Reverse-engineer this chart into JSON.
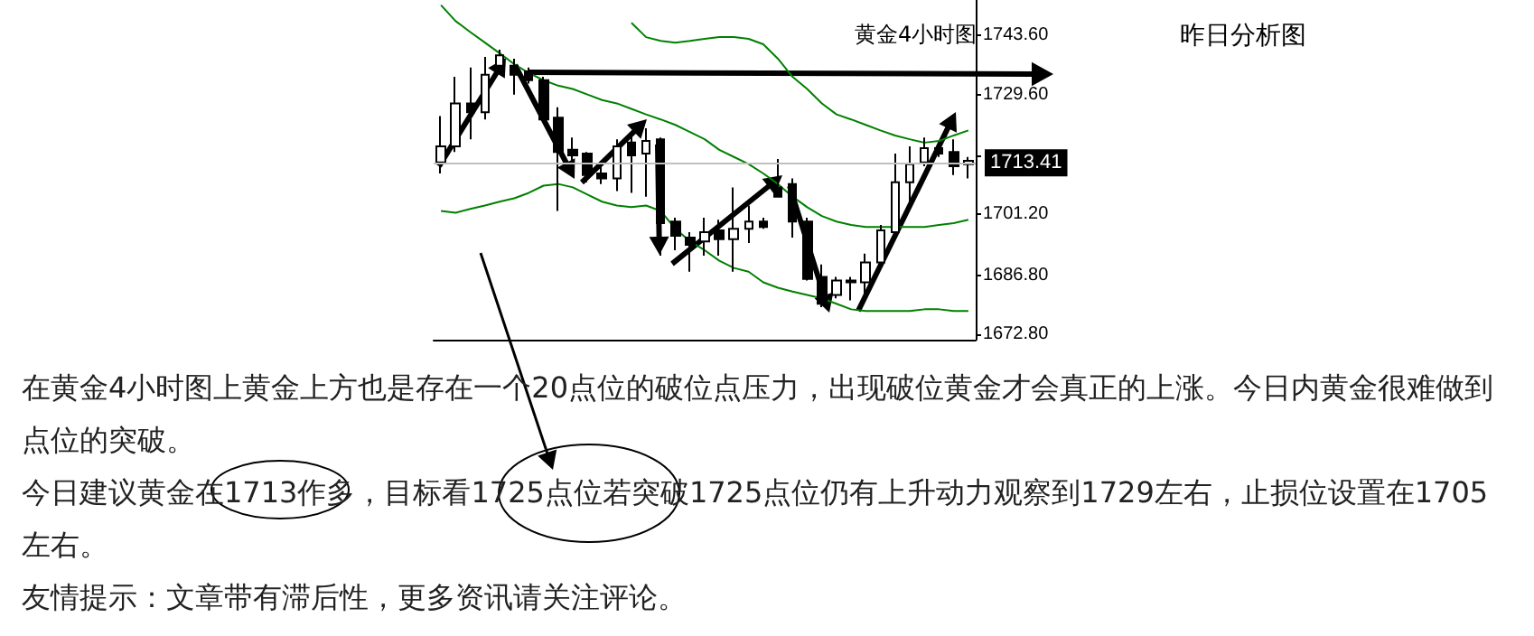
{
  "chart_data": {
    "type": "candlestick",
    "title": "黄金4小时图",
    "subtitle": "昨日分析图",
    "categories": [
      null,
      null,
      null,
      null,
      null,
      null,
      null,
      null,
      null,
      null,
      null,
      null,
      null,
      null,
      null,
      null,
      null,
      null,
      null,
      null,
      null,
      null,
      null,
      null,
      null,
      null,
      null,
      null,
      null,
      null,
      null,
      null,
      null,
      null,
      null,
      null,
      null
    ],
    "ohlc": [
      [
        1713.5,
        1724.5,
        1710.9,
        1717.3
      ],
      [
        1717.3,
        1733.8,
        1716.0,
        1727.5
      ],
      [
        1727.5,
        1736.0,
        1719.0,
        1725.4
      ],
      [
        1725.4,
        1738.5,
        1723.7,
        1734.3
      ],
      [
        1736.4,
        1740.2,
        1735.1,
        1738.9
      ],
      [
        1736.4,
        1738.1,
        1729.6,
        1734.3
      ],
      [
        1735.1,
        1736.0,
        1732.2,
        1733.0
      ],
      [
        1733.0,
        1733.8,
        1723.2,
        1723.7
      ],
      [
        1724.1,
        1726.6,
        1702.0,
        1716.0
      ],
      [
        1716.5,
        1719.4,
        1710.9,
        1715.2
      ],
      [
        1715.6,
        1716.0,
        1708.8,
        1710.5
      ],
      [
        1710.9,
        1712.6,
        1708.4,
        1709.7
      ],
      [
        1709.7,
        1719.0,
        1706.7,
        1717.3
      ],
      [
        1718.2,
        1720.3,
        1706.3,
        1715.2
      ],
      [
        1715.6,
        1721.6,
        1705.4,
        1718.6
      ],
      [
        1719.0,
        1719.4,
        1691.4,
        1699.1
      ],
      [
        1699.5,
        1700.4,
        1692.7,
        1696.1
      ],
      [
        1695.7,
        1697.0,
        1687.6,
        1694.0
      ],
      [
        1694.8,
        1700.4,
        1691.4,
        1697.0
      ],
      [
        1697.4,
        1699.9,
        1691.4,
        1695.3
      ],
      [
        1695.3,
        1707.6,
        1687.6,
        1697.8
      ],
      [
        1697.8,
        1703.3,
        1694.4,
        1699.5
      ],
      [
        1699.5,
        1700.4,
        1697.8,
        1698.2
      ],
      [
        1707.6,
        1714.3,
        1705.4,
        1705.4
      ],
      [
        1708.4,
        1709.7,
        1695.7,
        1699.5
      ],
      [
        1699.5,
        1700.4,
        1685.5,
        1685.9
      ],
      [
        1686.4,
        1689.3,
        1679.2,
        1680.0
      ],
      [
        1682.1,
        1686.4,
        1681.3,
        1685.5
      ],
      [
        1685.5,
        1686.4,
        1680.8,
        1685.1
      ],
      [
        1685.1,
        1691.9,
        1682.1,
        1689.8
      ],
      [
        1689.8,
        1698.7,
        1689.3,
        1697.4
      ],
      [
        1697.0,
        1715.6,
        1696.1,
        1708.8
      ],
      [
        1708.8,
        1717.3,
        1703.3,
        1713.1
      ],
      [
        1713.5,
        1719.4,
        1712.6,
        1716.9
      ],
      [
        1716.9,
        1718.2,
        1714.8,
        1715.6
      ],
      [
        1716.0,
        1719.0,
        1710.5,
        1712.6
      ],
      [
        1713.1,
        1714.8,
        1709.7,
        1713.9
      ]
    ],
    "colors": [
      "#ffffff",
      "#ffffff",
      "#000000",
      "#ffffff",
      "#ffffff",
      "#000000",
      "#000000",
      "#000000",
      "#000000",
      "#000000",
      "#000000",
      "#000000",
      "#ffffff",
      "#000000",
      "#ffffff",
      "#000000",
      "#000000",
      "#000000",
      "#ffffff",
      "#000000",
      "#ffffff",
      "#ffffff",
      "#000000",
      "#000000",
      "#000000",
      "#000000",
      "#000000",
      "#ffffff",
      "#000000",
      "#ffffff",
      "#ffffff",
      "#ffffff",
      "#ffffff",
      "#ffffff",
      "#000000",
      "#000000",
      "#ffffff"
    ],
    "series": [
      {
        "type": "line",
        "color": "#008000",
        "values": [
          null,
          null,
          null,
          null,
          null,
          null,
          null,
          null,
          null,
          null,
          null,
          null,
          null,
          1746.6,
          1743.2,
          1742.3,
          1741.9,
          1742.3,
          1742.8,
          1743.2,
          1743.2,
          1742.8,
          1741.5,
          1738.1,
          1733.8,
          1730.9,
          1727.5,
          1724.9,
          1723.7,
          1722.4,
          1721.1,
          1719.9,
          1719.0,
          1718.2,
          1718.6,
          1719.9,
          1721.1
        ]
      },
      {
        "type": "line",
        "color": "#008000",
        "values": [
          1750.8,
          1747.0,
          1744.4,
          1741.9,
          1739.4,
          1736.8,
          1734.7,
          1733.0,
          1731.7,
          1730.9,
          1729.6,
          1728.3,
          1727.5,
          1726.2,
          1724.9,
          1723.7,
          1722.4,
          1720.7,
          1719.0,
          1716.5,
          1714.8,
          1713.1,
          1710.9,
          1708.4,
          1705.4,
          1702.9,
          1700.8,
          1699.5,
          1698.7,
          1698.2,
          1698.2,
          1698.2,
          1698.2,
          1698.2,
          1698.7,
          1699.1,
          1699.9
        ]
      },
      {
        "type": "line",
        "color": "#008000",
        "values": [
          1702.0,
          1701.6,
          1702.5,
          1703.3,
          1704.2,
          1705.0,
          1706.3,
          1708.0,
          1708.4,
          1707.6,
          1705.9,
          1704.2,
          1703.3,
          1702.9,
          1703.3,
          1702.0,
          1697.8,
          1694.8,
          1692.7,
          1690.2,
          1688.5,
          1687.6,
          1685.1,
          1683.8,
          1682.9,
          1682.1,
          1681.3,
          1680.0,
          1678.7,
          1678.3,
          1678.3,
          1678.3,
          1678.3,
          1678.7,
          1678.7,
          1678.3,
          1678.3
        ]
      }
    ],
    "ylim": [
      1671.5,
      1752
    ],
    "yticks": [
      {
        "value": 1672.8,
        "label": "1672.80"
      },
      {
        "value": 1686.8,
        "label": "1686.80"
      },
      {
        "value": 1701.2,
        "label": "1701.20"
      },
      {
        "value": 1715.2,
        "label": null
      },
      {
        "value": 1729.6,
        "label": "1729.60"
      },
      {
        "value": 1743.6,
        "label": "1743.60"
      }
    ],
    "tick_labels": "y",
    "grid": false,
    "ref_lines": [
      {
        "axis": "y",
        "value": 1713.41,
        "label": "1713.41",
        "color": "#c0c0c0"
      }
    ],
    "annotations": [
      "在黄金4小时图上黄金上方也是存在一个20点位的破位点压力，出现破位黄金才会真正的上涨。今日内黄金很难做到点位的突破。",
      "今日建议黄金在1713作多，目标看1725点位若突破1725点位仍有上升动力观察到1729左右，止损位设置在1705左右。",
      "友情提示：文章带有滞后性，更多资讯请关注评论。"
    ]
  }
}
